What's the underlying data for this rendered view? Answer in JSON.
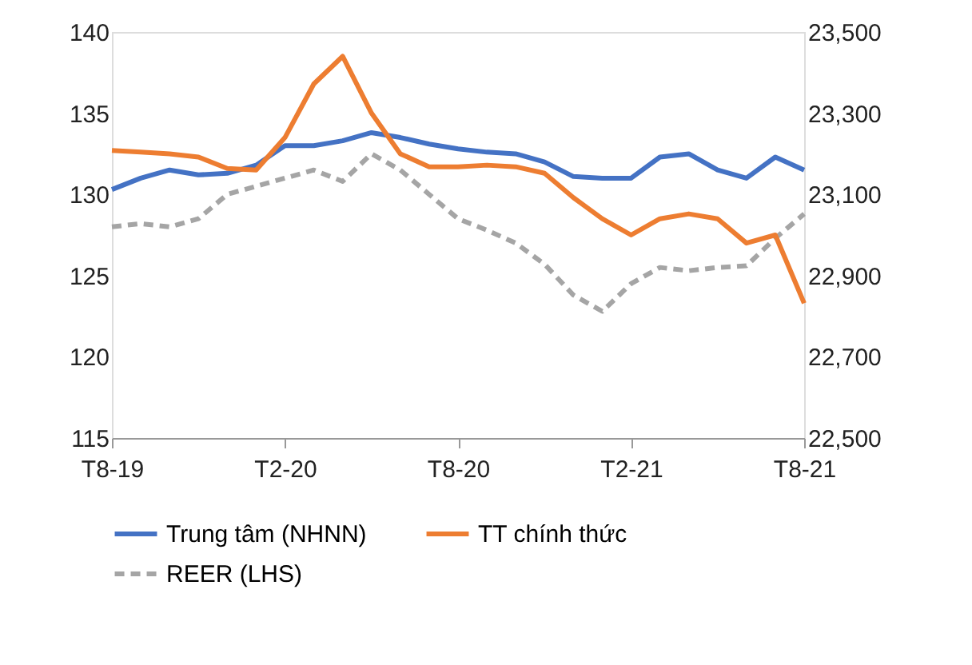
{
  "chart_data": {
    "type": "line",
    "categories": [
      "T8-19",
      null,
      null,
      null,
      null,
      null,
      "T2-20",
      null,
      null,
      null,
      null,
      null,
      "T8-20",
      null,
      null,
      null,
      null,
      null,
      "T2-21",
      null,
      null,
      null,
      null,
      null,
      "T8-21"
    ],
    "series": [
      {
        "name": "Trung tâm (NHNN)",
        "color": "#4472c4",
        "axis": "y2",
        "line_style": "solid",
        "values": [
          23112,
          23140,
          23160,
          23148,
          23152,
          23172,
          23220,
          23220,
          23232,
          23252,
          23240,
          23224,
          23212,
          23204,
          23200,
          23180,
          23144,
          23140,
          23140,
          23192,
          23200,
          23160,
          23140,
          23192,
          23160
        ]
      },
      {
        "name": "TT chính thức",
        "color": "#ed7d31",
        "axis": "y2",
        "line_style": "solid",
        "values": [
          23208,
          23204,
          23200,
          23192,
          23164,
          23160,
          23240,
          23372,
          23440,
          23300,
          23200,
          23168,
          23168,
          23172,
          23168,
          23152,
          23092,
          23040,
          23000,
          23040,
          23052,
          23040,
          22980,
          23000,
          22832
        ]
      },
      {
        "name": "REER (LHS)",
        "color": "#a5a5a5",
        "axis": "y",
        "line_style": "dashed",
        "values": [
          128.0,
          128.2,
          128.0,
          128.5,
          130.0,
          130.5,
          131.0,
          131.5,
          130.8,
          132.5,
          131.5,
          130.0,
          128.5,
          127.8,
          127.0,
          125.7,
          123.8,
          122.8,
          124.5,
          125.5,
          125.3,
          125.5,
          125.6,
          127.3,
          128.8
        ]
      }
    ],
    "ylim": [
      115,
      140
    ],
    "yticks": [
      115,
      120,
      125,
      130,
      135,
      140
    ],
    "y2lim": [
      22500,
      23500
    ],
    "y2ticks": [
      {
        "value": 22500,
        "label": "22,500"
      },
      {
        "value": 22700,
        "label": "22,700"
      },
      {
        "value": 22900,
        "label": "22,900"
      },
      {
        "value": 23100,
        "label": "23,100"
      },
      {
        "value": 23300,
        "label": "23,300"
      },
      {
        "value": 23500,
        "label": "23,500"
      }
    ],
    "grid": false,
    "legend": "bottom",
    "marker": "none"
  }
}
